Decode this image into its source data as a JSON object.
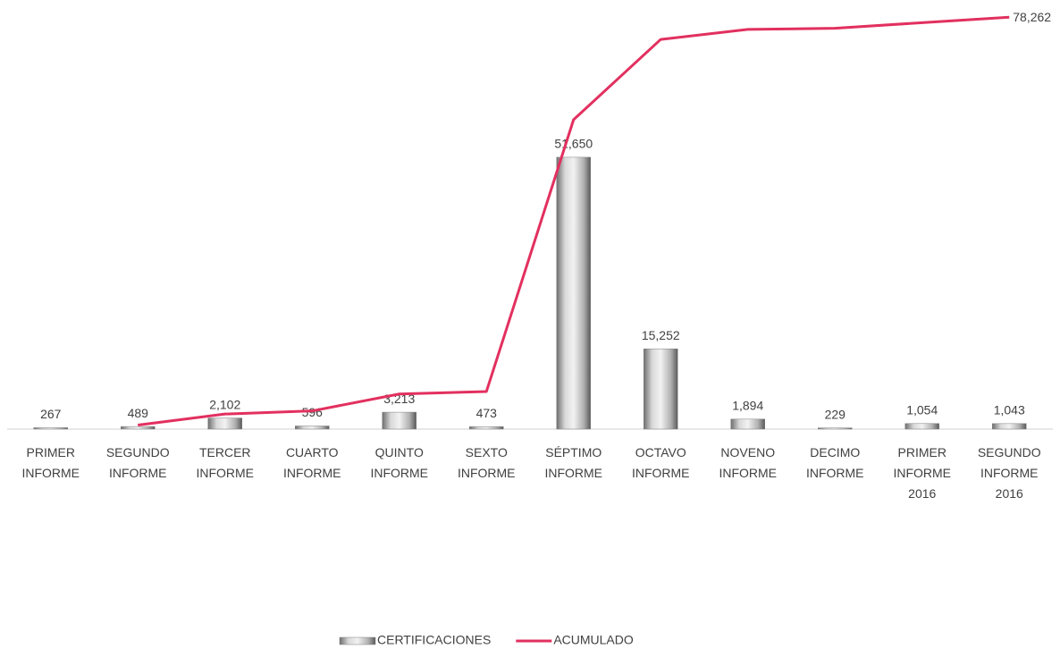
{
  "chart_data": {
    "type": "bar_line",
    "categories": [
      "PRIMER INFORME",
      "SEGUNDO INFORME",
      "TERCER INFORME",
      "CUARTO INFORME",
      "QUINTO INFORME",
      "SEXTO INFORME",
      "SÉPTIMO INFORME",
      "OCTAVO INFORME",
      "NOVENO INFORME",
      "DECIMO INFORME",
      "PRIMER INFORME 2016",
      "SEGUNDO INFORME 2016"
    ],
    "series": [
      {
        "name": "CERTIFICACIONES",
        "type": "bar",
        "color": "#a6a6a6",
        "values": [
          267,
          489,
          2102,
          596,
          3213,
          473,
          51650,
          15252,
          1894,
          229,
          1054,
          1043
        ],
        "value_labels": [
          "267",
          "489",
          "2,102",
          "596",
          "3,213",
          "473",
          "51,650",
          "15,252",
          "1,894",
          "229",
          "1,054",
          "1,043"
        ]
      },
      {
        "name": "ACUMULADO",
        "type": "line",
        "color": "#e2305f",
        "values": [
          null,
          756,
          2858,
          3454,
          6667,
          7140,
          58790,
          74042,
          75936,
          76165,
          77219,
          78262
        ],
        "value_labels": [
          null,
          null,
          null,
          null,
          null,
          null,
          null,
          null,
          null,
          null,
          null,
          "78,262"
        ]
      }
    ],
    "ylim": [
      0,
      80000
    ],
    "legend": "bottom"
  }
}
